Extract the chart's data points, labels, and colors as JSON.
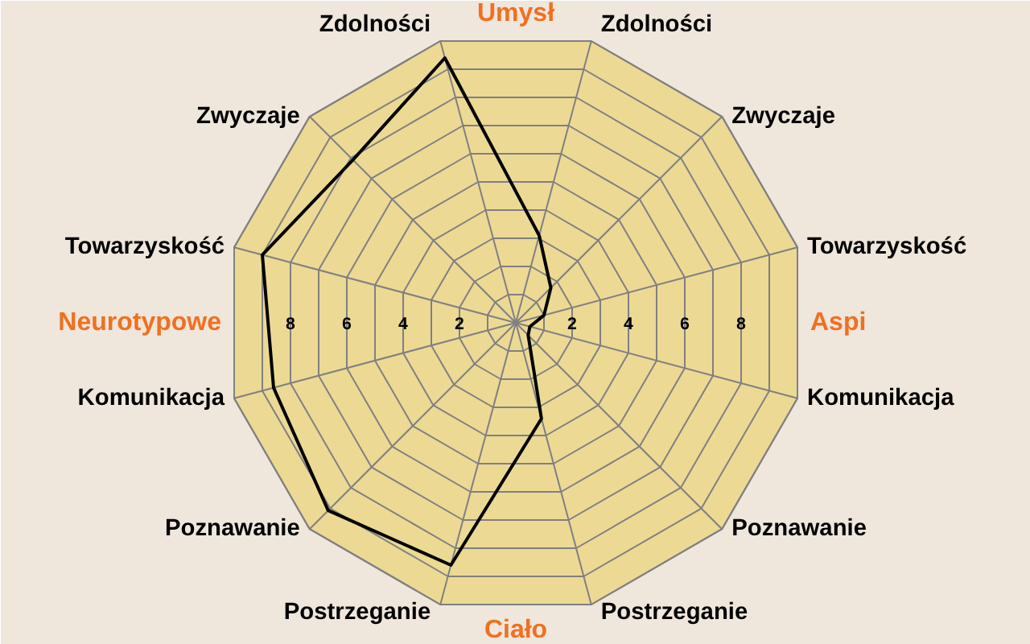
{
  "chart_data": {
    "type": "radar",
    "categories": [
      "Zdolności",
      "Zwyczaje",
      "Towarzyskość",
      "Komunikacja",
      "Poznawanie",
      "Postrzeganie",
      "Postrzeganie",
      "Poznawanie",
      "Komunikacja",
      "Towarzyskość",
      "Zwyczaje",
      "Zdolności"
    ],
    "series": [
      {
        "color": "#000000",
        "values": [
          3.1,
          1.7,
          1.0,
          0.5,
          0.6,
          3.4,
          8.6,
          9.1,
          8.6,
          9.0,
          7.9,
          9.4
        ]
      }
    ],
    "ylim": [
      0,
      10
    ],
    "yticks": [
      2,
      4,
      6,
      8,
      2,
      4,
      6,
      8
    ],
    "annotations": [
      "Umysł",
      "Aspi",
      "Ciało",
      "Neurotypowe"
    ],
    "grid": true,
    "marker": "none",
    "line_style": "solid"
  }
}
